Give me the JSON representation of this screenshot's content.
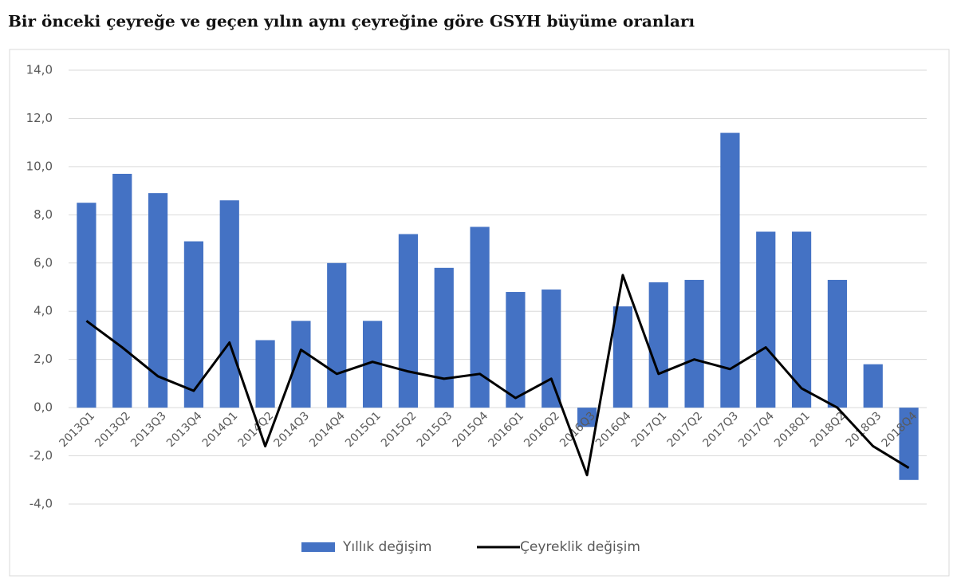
{
  "chart_data": {
    "type": "bar-line",
    "title": "Bir önceki çeyreğe ve geçen yılın aynı çeyreğine göre GSYH büyüme oranları",
    "categories": [
      "2013Q1",
      "2013Q2",
      "2013Q3",
      "2013Q4",
      "2014Q1",
      "2014Q2",
      "2014Q3",
      "2014Q4",
      "2015Q1",
      "2015Q2",
      "2015Q3",
      "2015Q4",
      "2016Q1",
      "2016Q2",
      "2016Q3",
      "2016Q4",
      "2017Q1",
      "2017Q2",
      "2017Q3",
      "2017Q4",
      "2018Q1",
      "2018Q2",
      "2018Q3",
      "2018Q4"
    ],
    "series": [
      {
        "name": "Yıllık değişim",
        "type": "bar",
        "color": "#4472c4",
        "values": [
          8.5,
          9.7,
          8.9,
          6.9,
          8.6,
          2.8,
          3.6,
          6.0,
          3.6,
          7.2,
          5.8,
          7.5,
          4.8,
          4.9,
          -0.8,
          4.2,
          5.2,
          5.3,
          11.4,
          7.3,
          7.3,
          5.3,
          1.8,
          -3.0
        ]
      },
      {
        "name": "Çeyreklik değişim",
        "type": "line",
        "color": "#000000",
        "values": [
          3.6,
          2.5,
          1.3,
          0.7,
          2.7,
          -1.6,
          2.4,
          1.4,
          1.9,
          1.5,
          1.2,
          1.4,
          0.4,
          1.2,
          -2.8,
          5.5,
          1.4,
          2.0,
          1.6,
          2.5,
          0.8,
          0.0,
          -1.6,
          -2.5
        ]
      }
    ],
    "ylim": [
      -4,
      14
    ],
    "yticks": [
      {
        "value": -4,
        "label": "-4,0"
      },
      {
        "value": -2,
        "label": "-2,0"
      },
      {
        "value": 0,
        "label": "0,0"
      },
      {
        "value": 2,
        "label": "2,0"
      },
      {
        "value": 4,
        "label": "4,0"
      },
      {
        "value": 6,
        "label": "6,0"
      },
      {
        "value": 8,
        "label": "8,0"
      },
      {
        "value": 10,
        "label": "10,0"
      },
      {
        "value": 12,
        "label": "12,0"
      },
      {
        "value": 14,
        "label": "14,0"
      }
    ],
    "grid": true,
    "legend": "bottom"
  }
}
